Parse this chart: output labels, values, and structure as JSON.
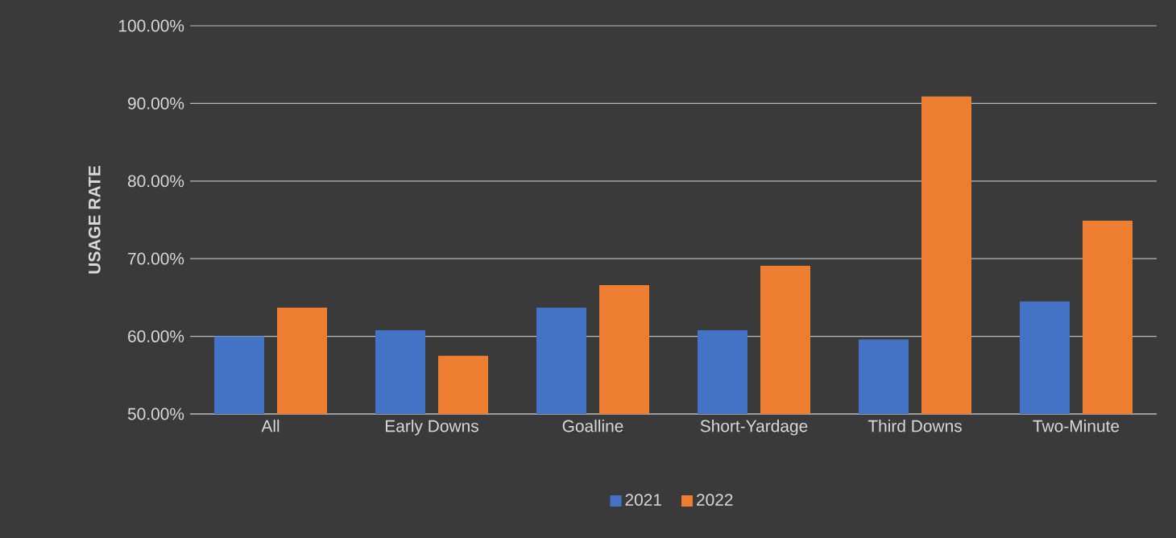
{
  "chart_data": {
    "type": "bar",
    "ylabel": "USAGE RATE",
    "categories": [
      "All",
      "Early Downs",
      "Goalline",
      "Short-Yardage",
      "Third Downs",
      "Two-Minute"
    ],
    "series": [
      {
        "name": "2021",
        "color": "#4472c4",
        "values": [
          60.0,
          60.8,
          63.7,
          60.8,
          59.6,
          64.5
        ]
      },
      {
        "name": "2022",
        "color": "#ed7d31",
        "values": [
          63.7,
          57.5,
          66.6,
          69.1,
          90.9,
          74.9
        ]
      }
    ],
    "ylim": [
      50,
      100
    ],
    "yticks": [
      {
        "value": 50,
        "label": "50.00%"
      },
      {
        "value": 60,
        "label": "60.00%"
      },
      {
        "value": 70,
        "label": "70.00%"
      },
      {
        "value": 80,
        "label": "80.00%"
      },
      {
        "value": 90,
        "label": "90.00%"
      },
      {
        "value": 100,
        "label": "100.00%"
      }
    ],
    "grid": "y",
    "legend": "bottom"
  }
}
